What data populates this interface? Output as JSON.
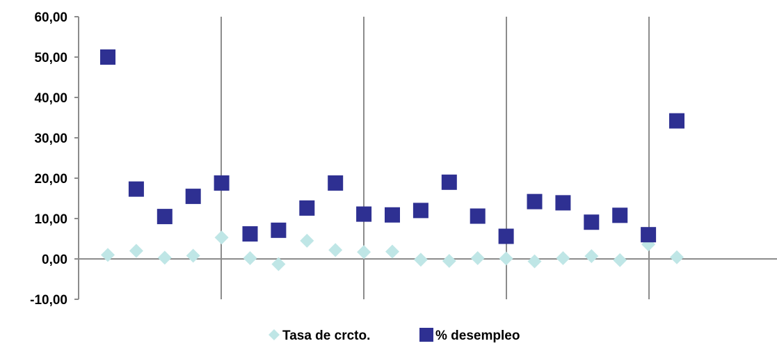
{
  "chart_data": {
    "type": "scatter",
    "title": "",
    "xlabel": "",
    "ylabel": "",
    "ylim": [
      -10,
      60
    ],
    "y_ticks": [
      "60,00",
      "50,00",
      "40,00",
      "30,00",
      "20,00",
      "10,00",
      "0,00",
      "-10,00"
    ],
    "grid": "vertical",
    "legend_position": "bottom",
    "x": [
      1,
      2,
      3,
      4,
      5,
      6,
      7,
      8,
      9,
      10,
      11,
      12,
      13,
      14,
      15,
      16,
      17,
      18,
      19,
      20,
      21
    ],
    "series": [
      {
        "name": "Tasa de crcto.",
        "marker": "diamond",
        "color": "#bfe6e6",
        "values": [
          1.0,
          2.0,
          0.3,
          0.8,
          5.3,
          0.2,
          -1.3,
          4.5,
          2.2,
          1.7,
          1.8,
          -0.2,
          -0.5,
          0.2,
          0.1,
          -0.6,
          0.2,
          0.7,
          -0.3,
          3.6,
          0.4
        ]
      },
      {
        "name": "% desempleo",
        "marker": "square",
        "color": "#2e3092",
        "values": [
          50.0,
          17.3,
          10.5,
          15.5,
          18.8,
          6.2,
          7.1,
          12.6,
          18.8,
          11.1,
          10.9,
          12.0,
          19.0,
          10.6,
          5.6,
          14.2,
          13.9,
          9.1,
          10.8,
          6.0,
          34.2
        ]
      }
    ]
  }
}
